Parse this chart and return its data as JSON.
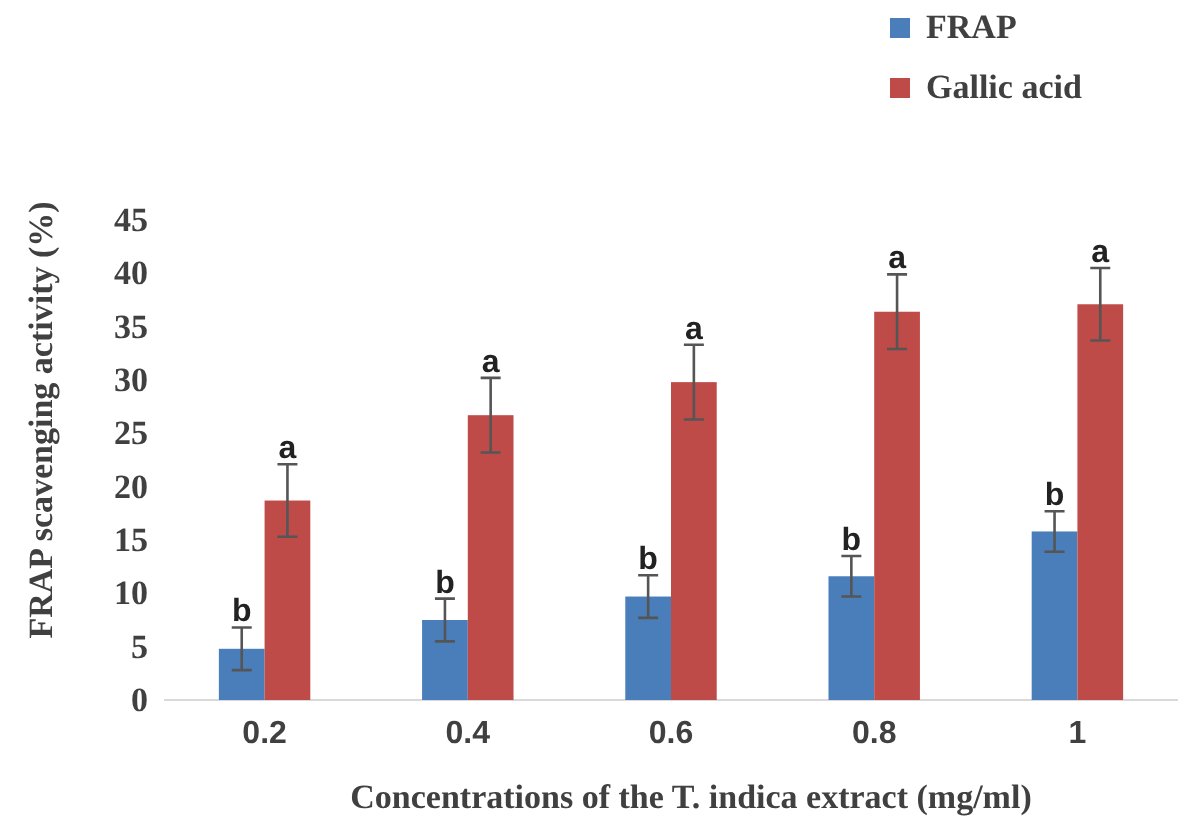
{
  "chart_data": {
    "type": "bar",
    "xlabel": "Concentrations of the T. indica extract (mg/ml)",
    "ylabel": "FRAP scavenging activity (%)",
    "categories": [
      "0.2",
      "0.4",
      "0.6",
      "0.8",
      "1"
    ],
    "series": [
      {
        "name": "FRAP",
        "color": "#4a7ebb",
        "values": [
          4.8,
          7.5,
          9.7,
          11.6,
          15.8
        ],
        "errors": [
          2,
          2,
          2,
          1.9,
          1.9
        ]
      },
      {
        "name": "Gallic acid",
        "color": "#be4b48",
        "values": [
          18.7,
          26.7,
          29.8,
          36.4,
          37.1
        ],
        "errors": [
          3.4,
          3.5,
          3.5,
          3.5,
          3.4
        ]
      }
    ],
    "ylim": [
      0,
      45
    ],
    "yticks": [
      0,
      5,
      10,
      15,
      20,
      25,
      30,
      35,
      40,
      45
    ],
    "grid": false,
    "legend": "top right",
    "annotations": [
      {
        "text": "b",
        "x": "0.2",
        "y": 4.8
      },
      {
        "text": "a",
        "x": "0.2",
        "y": 18.7
      },
      {
        "text": "b",
        "x": "0.4",
        "y": 7.5
      },
      {
        "text": "a",
        "x": "0.4",
        "y": 26.7
      },
      {
        "text": "b",
        "x": "0.6",
        "y": 9.7
      },
      {
        "text": "a",
        "x": "0.6",
        "y": 29.8
      },
      {
        "text": "b",
        "x": "0.8",
        "y": 11.6
      },
      {
        "text": "a",
        "x": "0.8",
        "y": 36.4
      },
      {
        "text": "b",
        "x": "1",
        "y": 15.8
      },
      {
        "text": "a",
        "x": "1",
        "y": 37.1
      }
    ]
  }
}
